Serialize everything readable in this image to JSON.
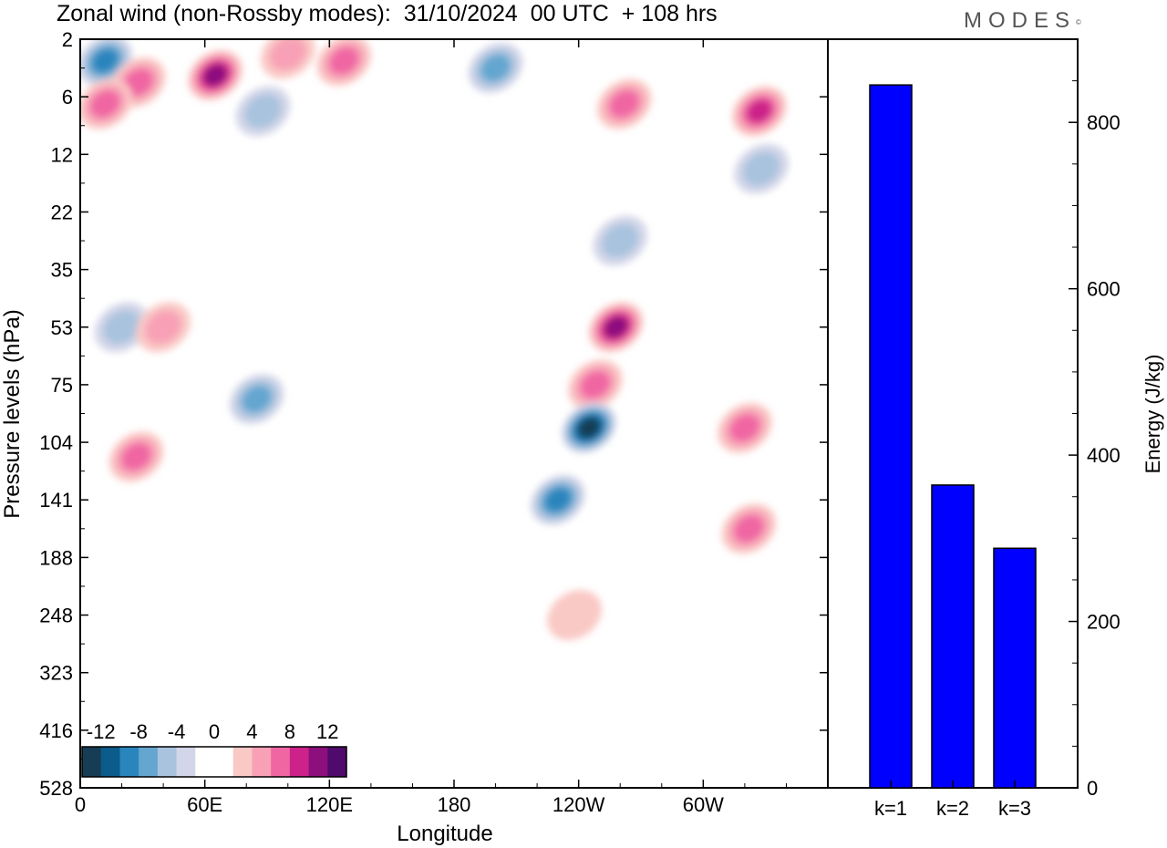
{
  "header": {
    "title": "Zonal wind (non-Rossby modes):  31/10/2024  00 UTC  + 108 hrs",
    "logo": "MODES"
  },
  "colors": {
    "negative": [
      "#173d55",
      "#0b5b8b",
      "#2a85bd",
      "#64a6d0",
      "#a9c3de",
      "#d3d6e8"
    ],
    "zero": "#ffffff",
    "positive": [
      "#f9c9c5",
      "#f8a1b6",
      "#f066a3",
      "#cc2289",
      "#8d0f7e",
      "#4f0b6b"
    ],
    "bar": "#0000ff"
  },
  "chart_data": [
    {
      "type": "heatmap",
      "title": "Zonal wind (non-Rossby modes):  31/10/2024  00 UTC  + 108 hrs",
      "xlabel": "Longitude",
      "ylabel": "Pressure levels (hPa)",
      "x_ticklabels": [
        "0",
        "60E",
        "120E",
        "180",
        "120W",
        "60W"
      ],
      "y_ticklabels": [
        "2",
        "6",
        "12",
        "22",
        "35",
        "53",
        "75",
        "104",
        "141",
        "188",
        "248",
        "323",
        "416",
        "528"
      ],
      "colorbar_labels": [
        "-12",
        "-8",
        "-4",
        "0",
        "4",
        "8",
        "12"
      ],
      "colorbar_levels": [
        -14,
        -12,
        -10,
        -8,
        -6,
        -4,
        -2,
        2,
        4,
        6,
        8,
        10,
        12,
        14
      ],
      "features": [
        {
          "lon": 12,
          "level": 1.5,
          "value": -10
        },
        {
          "lon": 28,
          "level": 3,
          "value": 8
        },
        {
          "lon": 12,
          "level": 4.5,
          "value": 7
        },
        {
          "lon": 65,
          "level": 2.5,
          "value": 11
        },
        {
          "lon": 100,
          "level": 1,
          "value": 6
        },
        {
          "lon": 127,
          "level": 1.5,
          "value": 7
        },
        {
          "lon": 200,
          "level": 2,
          "value": -8
        },
        {
          "lon": 262,
          "level": 4.5,
          "value": 7
        },
        {
          "lon": 327,
          "level": 5,
          "value": 10
        },
        {
          "lon": 328,
          "level": 9,
          "value": -6
        },
        {
          "lon": 88,
          "level": 5,
          "value": -5
        },
        {
          "lon": 260,
          "level": 14,
          "value": -5
        },
        {
          "lon": 20,
          "level": 20,
          "value": -5
        },
        {
          "lon": 40,
          "level": 20,
          "value": 5
        },
        {
          "lon": 85,
          "level": 25,
          "value": -7
        },
        {
          "lon": 258,
          "level": 20,
          "value": 11
        },
        {
          "lon": 248,
          "level": 24,
          "value": 7
        },
        {
          "lon": 245,
          "level": 27,
          "value": -13
        },
        {
          "lon": 230,
          "level": 32,
          "value": -10
        },
        {
          "lon": 320,
          "level": 27,
          "value": 7
        },
        {
          "lon": 322,
          "level": 34,
          "value": 7
        },
        {
          "lon": 27,
          "level": 29,
          "value": 7
        },
        {
          "lon": 238,
          "level": 40,
          "value": 3
        }
      ]
    },
    {
      "type": "bar",
      "categories": [
        "k=1",
        "k=2",
        "k=3"
      ],
      "values": [
        845,
        364,
        288
      ],
      "ylabel": "Energy (J/kg)",
      "ylim": [
        0,
        900
      ],
      "yticks": [
        0,
        200,
        400,
        600,
        800
      ]
    }
  ]
}
